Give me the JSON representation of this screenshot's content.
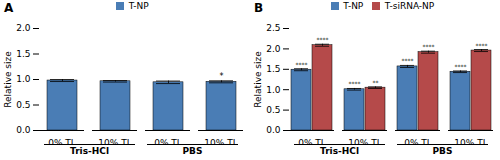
{
  "chart_data": [
    {
      "type": "bar",
      "title": "A",
      "categories": [
        "0% TL",
        "10% TL",
        "0% TL",
        "10% TL"
      ],
      "group_labels": [
        "Tris-HCl",
        "PBS"
      ],
      "series": [
        {
          "name": "T-NP",
          "color": "#4a7db5",
          "values": [
            0.98,
            0.965,
            0.945,
            0.955
          ],
          "errors": [
            0.02,
            0.015,
            0.025,
            0.02
          ],
          "significance": [
            null,
            null,
            null,
            "*"
          ]
        }
      ],
      "ylim": [
        0.0,
        2.0
      ],
      "yticks": [
        {
          "value": 0.0,
          "label": "0.0"
        },
        {
          "value": 0.5,
          "label": "0.5"
        },
        {
          "value": 1.0,
          "label": "1.0"
        },
        {
          "value": 1.5,
          "label": "1.5"
        },
        {
          "value": 2.0,
          "label": "2.0"
        }
      ],
      "ylabel": "Relative size"
    },
    {
      "type": "bar",
      "title": "B",
      "categories": [
        "0% TL",
        "10% TL",
        "0% TL",
        "10% TL"
      ],
      "group_labels": [
        "Tris-HCl",
        "PBS"
      ],
      "series": [
        {
          "name": "T-NP",
          "color": "#4a7db5",
          "values": [
            1.49,
            1.01,
            1.57,
            1.44
          ],
          "errors": [
            0.025,
            0.02,
            0.025,
            0.02
          ],
          "significance": [
            "****",
            "****",
            "****",
            "****"
          ]
        },
        {
          "name": "T-siRNA-NP",
          "color": "#b54a4a",
          "values": [
            2.09,
            1.05,
            1.92,
            1.96
          ],
          "errors": [
            0.025,
            0.02,
            0.025,
            0.025
          ],
          "significance": [
            "****",
            "**",
            "****",
            "****"
          ]
        }
      ],
      "ylim": [
        0.0,
        2.5
      ],
      "yticks": [
        {
          "value": 0.0,
          "label": "0.0"
        },
        {
          "value": 0.5,
          "label": "0.5"
        },
        {
          "value": 1.0,
          "label": "1.0"
        },
        {
          "value": 1.5,
          "label": "1.5"
        },
        {
          "value": 2.0,
          "label": "2.0"
        },
        {
          "value": 2.5,
          "label": "2.5"
        }
      ],
      "ylabel": "Relative size"
    }
  ]
}
